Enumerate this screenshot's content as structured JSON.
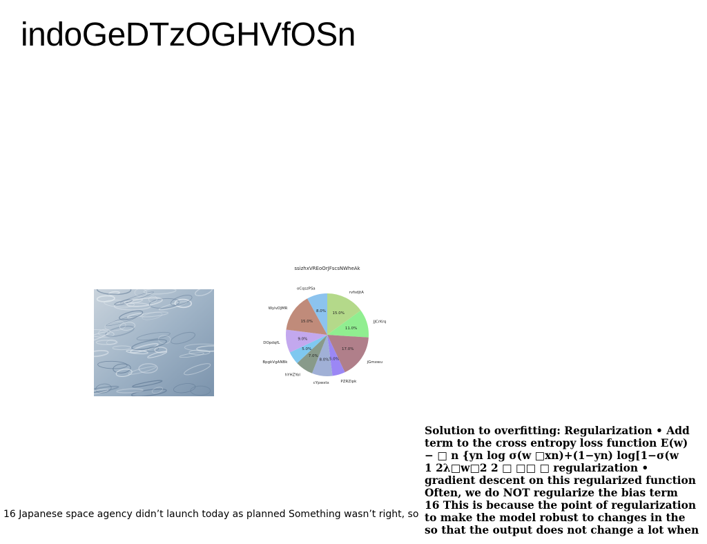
{
  "slide": {
    "title": "indoGeDTzOGHVfOSn",
    "caption_left": "16 Japanese space agency didn’t launch today as planned Something wasn’t right, so",
    "text_lines": [
      "Solution to overfitting: Regularization • Add",
      "term to the cross entropy loss function E(w)",
      "− □ n {yn log σ(w □xn)+(1−yn) log[1−σ(w",
      "1 2λ□w□2 2 □ □□ □ regularization •",
      "gradient descent on this regularized function",
      "Often, we do NOT regularize the bias term",
      "16 This is because the point of regularization",
      "to make the model robust to changes in the",
      "so that the output does not change a lot when"
    ]
  },
  "photo": {
    "subject": "rippled-water-surface",
    "colors": [
      "#9fb3c6",
      "#7b93ac",
      "#c9d3dc",
      "#5f7894"
    ]
  },
  "chart_data": {
    "type": "pie",
    "title": "ssizhxVREoOrJFscsNWheAk",
    "start_angle_deg": 90,
    "direction": "clockwise",
    "slices": [
      {
        "label": "rvfsdjtA",
        "value": 15.0,
        "pct_label": "15.0%",
        "color": "#b4d98a"
      },
      {
        "label": "JJCrKrq",
        "value": 11.0,
        "pct_label": "11.0%",
        "color": "#90ee90"
      },
      {
        "label": "jGmxwu",
        "value": 17.0,
        "pct_label": "17.0%",
        "color": "#b07f8a"
      },
      {
        "label": "PZRZipk",
        "value": 5.0,
        "pct_label": "5.0%",
        "color": "#9b87f5"
      },
      {
        "label": "cYpwxtx",
        "value": 8.0,
        "pct_label": "8.0%",
        "color": "#a0b0d6"
      },
      {
        "label": "hYHZYol",
        "value": 7.0,
        "pct_label": "7.0%",
        "color": "#889a8a"
      },
      {
        "label": "BpgkVgANBk",
        "value": 5.0,
        "pct_label": "5.0%",
        "color": "#7fc8f0"
      },
      {
        "label": "DOpdqfL",
        "value": 9.0,
        "pct_label": "9.0%",
        "color": "#c3a8ee"
      },
      {
        "label": "WylvDJMR",
        "value": 15.0,
        "pct_label": "15.0%",
        "color": "#c08b7a"
      },
      {
        "label": "oCqszPSa",
        "value": 8.0,
        "pct_label": "8.0%",
        "color": "#8cc3ee"
      }
    ]
  }
}
